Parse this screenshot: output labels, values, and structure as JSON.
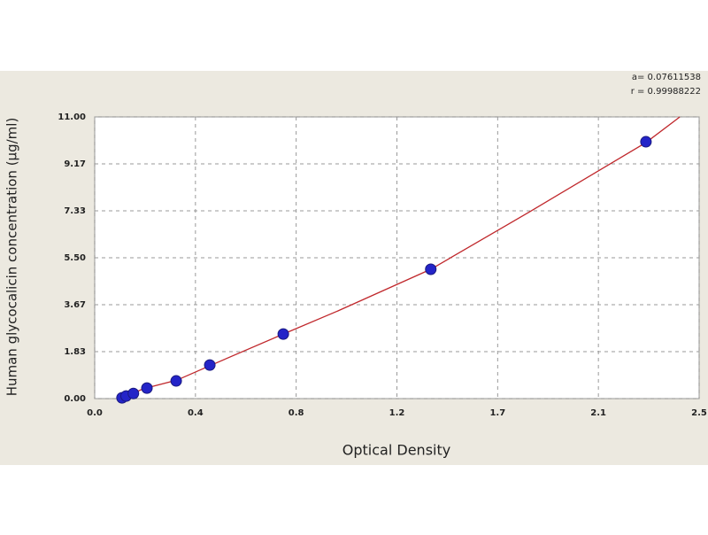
{
  "chart_data": {
    "type": "scatter",
    "x_label": "Optical Density",
    "y_label": "Human glycocalicin concentration (µg/ml)",
    "annotations": [
      "a= 0.07611538",
      "r = 0.99988222"
    ],
    "points": {
      "color": "#2424c8",
      "x": [
        0.113,
        0.13,
        0.16,
        0.216,
        0.337,
        0.476,
        0.78,
        1.39,
        2.28
      ],
      "y": [
        0.03,
        0.1,
        0.2,
        0.41,
        0.69,
        1.31,
        2.52,
        5.05,
        10.03
      ]
    },
    "fit": {
      "color": "#c0282c",
      "x": [
        0.11,
        0.2,
        0.34,
        0.48,
        0.78,
        1.0,
        1.39,
        1.8,
        2.28,
        2.42
      ],
      "y": [
        0.0,
        0.38,
        0.72,
        1.3,
        2.52,
        3.4,
        5.05,
        7.3,
        10.0,
        11.0
      ]
    },
    "xlim": [
      0,
      2.5
    ],
    "xticks": [
      {
        "value": 0,
        "label": "0.0"
      },
      {
        "value": 0.4167,
        "label": "0.4"
      },
      {
        "value": 0.8333,
        "label": "0.8"
      },
      {
        "value": 1.25,
        "label": "1.2"
      },
      {
        "value": 1.6667,
        "label": "1.7"
      },
      {
        "value": 2.0833,
        "label": "2.1"
      },
      {
        "value": 2.5,
        "label": "2.5"
      }
    ],
    "ylim": [
      0,
      11
    ],
    "yticks": [
      {
        "value": 0,
        "label": "0.00"
      },
      {
        "value": 1.8333,
        "label": "1.83"
      },
      {
        "value": 3.6667,
        "label": "3.67"
      },
      {
        "value": 5.5,
        "label": "5.50"
      },
      {
        "value": 7.3333,
        "label": "7.33"
      },
      {
        "value": 9.1667,
        "label": "9.17"
      },
      {
        "value": 11,
        "label": "11.00"
      }
    ],
    "grid": true
  }
}
